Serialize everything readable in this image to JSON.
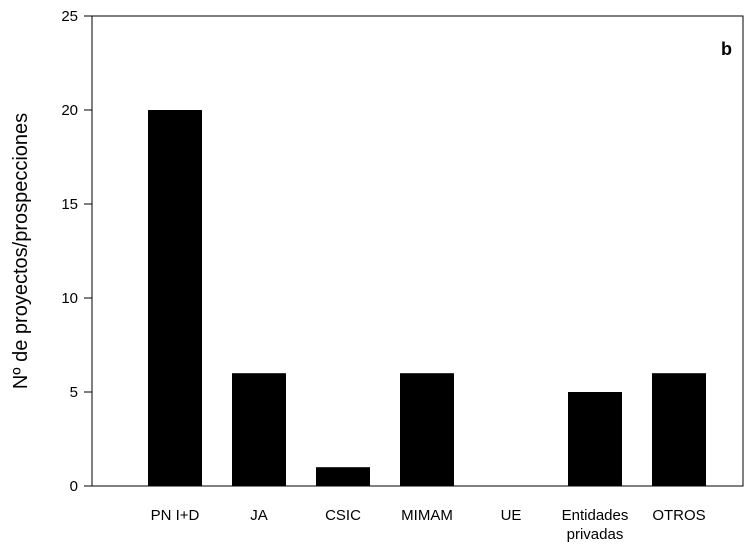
{
  "chart_data": {
    "type": "bar",
    "panel_label": "b",
    "ylabel": "Nº de proyectos/prospecciones",
    "xlabel": "",
    "categories": [
      [
        "PN I+D"
      ],
      [
        "JA"
      ],
      [
        "CSIC"
      ],
      [
        "MIMAM"
      ],
      [
        "UE"
      ],
      [
        "Entidades",
        "privadas"
      ],
      [
        "OTROS"
      ]
    ],
    "values": [
      20,
      6,
      1,
      6,
      0,
      5,
      6
    ],
    "ylim": [
      0,
      25
    ],
    "yticks": [
      0,
      5,
      10,
      15,
      20,
      25
    ],
    "bar_color": "#000000",
    "grid": false,
    "legend": "none"
  }
}
